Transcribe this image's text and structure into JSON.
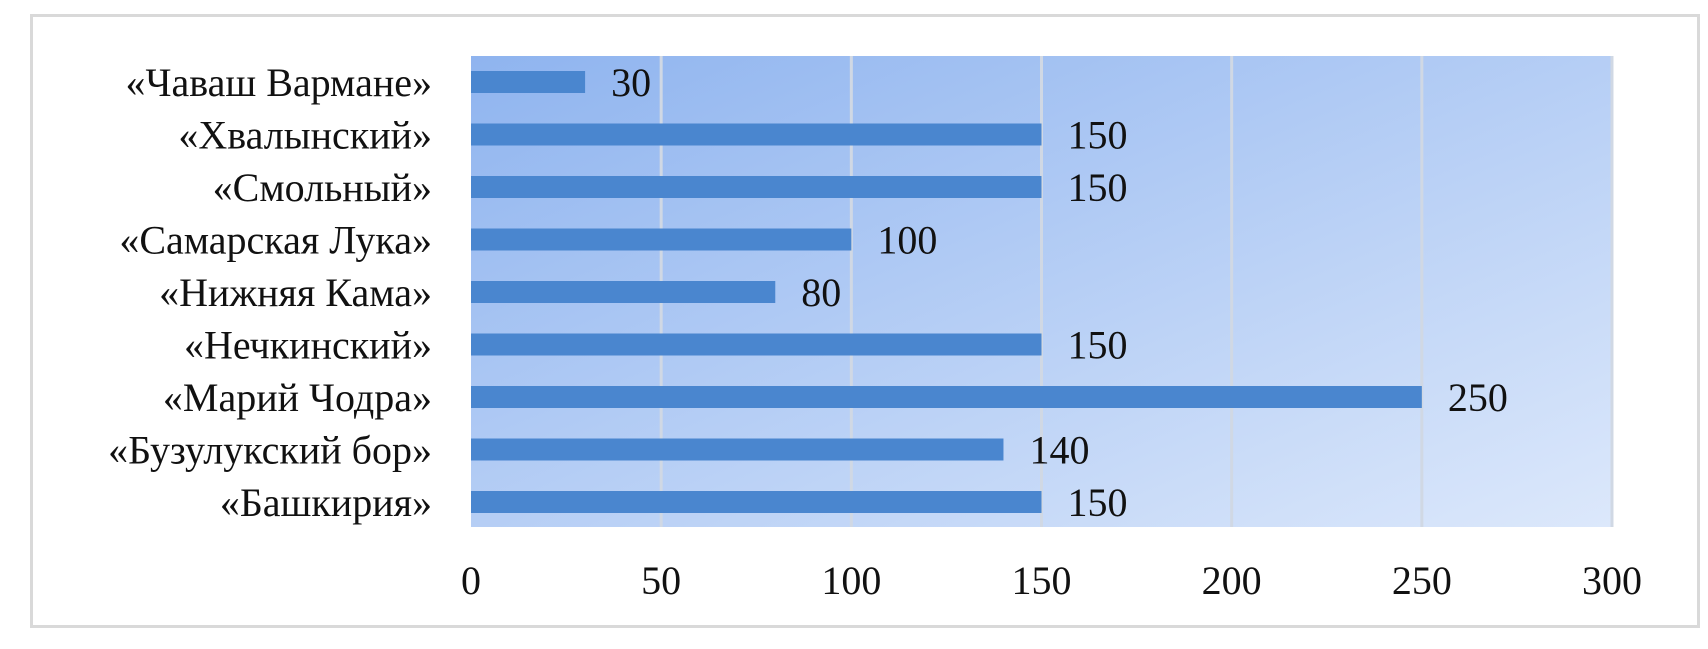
{
  "chart_data": {
    "type": "bar",
    "orientation": "horizontal",
    "categories": [
      "«Чаваш Вармане»",
      "«Хвалынский»",
      "«Смольный»",
      "«Самарская Лука»",
      "«Нижняя Кама»",
      "«Нечкинский»",
      "«Марий Чодра»",
      "«Бузулукский бор»",
      "«Башкирия»"
    ],
    "values": [
      30,
      150,
      150,
      100,
      80,
      150,
      250,
      140,
      150
    ],
    "value_labels": [
      "30",
      "150",
      "150",
      "100",
      "80",
      "150",
      "250",
      "140",
      "150"
    ],
    "x_ticks": [
      "0",
      "50",
      "100",
      "150",
      "200",
      "250",
      "300"
    ],
    "xlim": [
      0,
      300
    ],
    "title": "",
    "xlabel": "",
    "ylabel": "",
    "grid": true,
    "legend": "none",
    "colors": {
      "bar": "#4a86cf",
      "plot_bg_start": "#8fb4ef",
      "plot_bg_end": "#dce8fb",
      "gridline": "#d0d8e4",
      "frame": "#d9d9d9"
    }
  }
}
